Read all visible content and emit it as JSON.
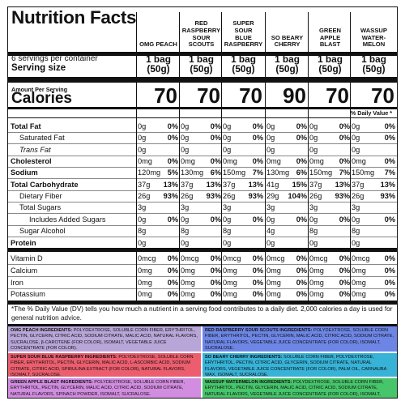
{
  "header": {
    "title": "Nutrition Facts",
    "products": [
      "OMG PEACH",
      "RED RASPBERRY SOUR SCOUTS",
      "SUPER SOUR BLUE RASPBERRY",
      "SO BEARY CHERRY",
      "GREEN APPLE BLAST",
      "WASSUP WATER-MELON"
    ],
    "product_display": [
      "OMG PEACH",
      "RED\nRASPBERRY\nSOUR\nSCOUTS",
      "SUPER\nSOUR\nBLUE\nRASPBERRY",
      "SO BEARY\nCHERRY",
      "GREEN\nAPPLE\nBLAST",
      "WASSUP\nWATER-\nMELON"
    ]
  },
  "servings": {
    "per_container": "6 servings per container",
    "size_label": "Serving size",
    "size": [
      "1 bag (50g)",
      "1 bag (50g)",
      "1 bag (50g)",
      "1 bag (50g)",
      "1 bag (50g)",
      "1 bag (50g)"
    ]
  },
  "calories": {
    "amount_per_serving": "Amount Per Serving",
    "label": "Calories",
    "values": [
      "70",
      "70",
      "70",
      "90",
      "70",
      "70"
    ]
  },
  "dv_header": "% Daily Value *",
  "nutrients": [
    {
      "name": "Total Fat",
      "bold": true,
      "values": [
        [
          "0g",
          "0%"
        ],
        [
          "0g",
          "0%"
        ],
        [
          "0g",
          "0%"
        ],
        [
          "0g",
          "0%"
        ],
        [
          "0g",
          "0%"
        ],
        [
          "0g",
          "0%"
        ]
      ]
    },
    {
      "name": "Saturated Fat",
      "indent": 1,
      "values": [
        [
          "0g",
          "0%"
        ],
        [
          "0g",
          "0%"
        ],
        [
          "0g",
          "0%"
        ],
        [
          "0g",
          "0%"
        ],
        [
          "0g",
          "0%"
        ],
        [
          "0g",
          "0%"
        ]
      ]
    },
    {
      "name": "Trans Fat",
      "indent": 1,
      "italic": true,
      "values": [
        [
          "0g",
          ""
        ],
        [
          "0g",
          ""
        ],
        [
          "0g",
          ""
        ],
        [
          "0g",
          ""
        ],
        [
          "0g",
          ""
        ],
        [
          "0g",
          ""
        ]
      ]
    },
    {
      "name": "Cholesterol",
      "bold": true,
      "values": [
        [
          "0mg",
          "0%"
        ],
        [
          "0mg",
          "0%"
        ],
        [
          "0mg",
          "0%"
        ],
        [
          "0mg",
          "0%"
        ],
        [
          "0mg",
          "0%"
        ],
        [
          "0mg",
          "0%"
        ]
      ]
    },
    {
      "name": "Sodium",
      "bold": true,
      "values": [
        [
          "120mg",
          "5%"
        ],
        [
          "130mg",
          "6%"
        ],
        [
          "150mg",
          "7%"
        ],
        [
          "130mg",
          "6%"
        ],
        [
          "150mg",
          "7%"
        ],
        [
          "150mg",
          "7%"
        ]
      ]
    },
    {
      "name": "Total Carbohydrate",
      "bold": true,
      "values": [
        [
          "37g",
          "13%"
        ],
        [
          "37g",
          "13%"
        ],
        [
          "37g",
          "13%"
        ],
        [
          "41g",
          "15%"
        ],
        [
          "37g",
          "13%"
        ],
        [
          "37g",
          "13%"
        ]
      ]
    },
    {
      "name": "Dietary Fiber",
      "indent": 1,
      "values": [
        [
          "26g",
          "93%"
        ],
        [
          "26g",
          "93%"
        ],
        [
          "26g",
          "93%"
        ],
        [
          "29g",
          "104%"
        ],
        [
          "26g",
          "93%"
        ],
        [
          "26g",
          "93%"
        ]
      ]
    },
    {
      "name": "Total Sugars",
      "indent": 1,
      "values": [
        [
          "3g",
          ""
        ],
        [
          "3g",
          ""
        ],
        [
          "3g",
          ""
        ],
        [
          "3g",
          ""
        ],
        [
          "3g",
          ""
        ],
        [
          "3g",
          ""
        ]
      ]
    },
    {
      "name": "Includes Added Sugars",
      "indent": 2,
      "values": [
        [
          "0g",
          "0%"
        ],
        [
          "0g",
          "0%"
        ],
        [
          "0g",
          "0%"
        ],
        [
          "0g",
          "0%"
        ],
        [
          "0g",
          "0%"
        ],
        [
          "0g",
          "0%"
        ]
      ]
    },
    {
      "name": "Sugar Alcohol",
      "indent": 1,
      "values": [
        [
          "8g",
          ""
        ],
        [
          "8g",
          ""
        ],
        [
          "8g",
          ""
        ],
        [
          "4g",
          ""
        ],
        [
          "8g",
          ""
        ],
        [
          "8g",
          ""
        ]
      ]
    },
    {
      "name": "Protein",
      "bold": true,
      "values": [
        [
          "0g",
          ""
        ],
        [
          "0g",
          ""
        ],
        [
          "0g",
          ""
        ],
        [
          "0g",
          ""
        ],
        [
          "0g",
          ""
        ],
        [
          "0g",
          ""
        ]
      ]
    },
    {
      "name": "Vitamin D",
      "values": [
        [
          "0mcg",
          "0%"
        ],
        [
          "0mcg",
          "0%"
        ],
        [
          "0mcg",
          "0%"
        ],
        [
          "0mcg",
          "0%"
        ],
        [
          "0mcg",
          "0%"
        ],
        [
          "0mcg",
          "0%"
        ]
      ]
    },
    {
      "name": "Calcium",
      "values": [
        [
          "0mg",
          "0%"
        ],
        [
          "0mg",
          "0%"
        ],
        [
          "0mg",
          "0%"
        ],
        [
          "0mg",
          "0%"
        ],
        [
          "0mg",
          "0%"
        ],
        [
          "0mg",
          "0%"
        ]
      ]
    },
    {
      "name": "Iron",
      "values": [
        [
          "0mg",
          "0%"
        ],
        [
          "0mg",
          "0%"
        ],
        [
          "0mg",
          "0%"
        ],
        [
          "0mg",
          "0%"
        ],
        [
          "0mg",
          "0%"
        ],
        [
          "0mg",
          "0%"
        ]
      ]
    },
    {
      "name": "Potassium",
      "values": [
        [
          "0mg",
          "0%"
        ],
        [
          "0mg",
          "0%"
        ],
        [
          "0mg",
          "0%"
        ],
        [
          "0mg",
          "0%"
        ],
        [
          "0mg",
          "0%"
        ],
        [
          "0mg",
          "0%"
        ]
      ]
    }
  ],
  "footnote": "*The % Daily Value (DV) tells you how much a nutrient in a serving food contributes to a daily diet. 2,000 calories a day is used for general nutrition advice.",
  "ingredients": [
    {
      "name": "OMG PEACH INGREDIENTS:",
      "text": "POLYDEXTROSE, SOLUBLE CORN FIBER, ERYTHRITOL, PECTIN, GLYCERIN, CITRIC ACID, SODIUM CITRATE, MALIC ACID, NATURAL FLAVORS, SUCRALOSE, β-CAROTENE (FOR COLOR), ISOMALT, VEGETABLE JUICE CONCENTRATE (FOR COLOR).",
      "color": "#b9a6d9"
    },
    {
      "name": "RED RASPBERRY SOUR SCOUTS INGREDIENTS:",
      "text": "POLYDEXTROSE, SOLUBLE CORN FIBER, ERYTHRITOL, PECTIN, GLYCERIN, MALIC ACID, CITRIC ACID, SODIUM CITRATE, NATURAL FLAVORS, VEGETABLE JUICE CONCENTRATE (FOR COLOR), ISOMALT, SUCRALOSE.",
      "color": "#6d86e6"
    },
    {
      "name": "SUPER SOUR BLUE RASPBERRY INGREDIENTS:",
      "text": "POLYDEXTROSE, SOLUBLE CORN FIBER, ERYTHRITOL, PECTIN, GLYCERIN, MALIC ACID, L-ASCORBIC ACID, SODIUM CITRATE, CITRIC ACID, SPIRULINA EXTRACT (FOR COLOR), NATURAL FLAVORS, ISOMALT, SUCRALOSE.",
      "color": "#ec5e6e"
    },
    {
      "name": "SO BEARY CHERRY INGREDIENTS:",
      "text": "SOLUBLE CORN FIBER, POLYDEXTROSE, ERYTHRITOL, PECTIN, CITRIC ACID, GLYCERIN, SODIUM CITRATE, NATURAL FLAVORS, VEGETABLE JUICE CONCENTRATE (FOR COLOR), PALM OIL, CARNAUBA WAX, ISOMALT, SUCRALOSE.",
      "color": "#37b3d8"
    },
    {
      "name": "GREEN APPLE BLAST INGREDIENTS:",
      "text": "POLYDEXTROSE, SOLUBLE CORN FIBER, ERYTHRITOL, PECTIN, GLYCERIN, MALIC ACID, CITRIC ACID, SODIUM CITRATE, NATURAL FLAVORS, SPINACH POWDER, ISOMALT, SUCRALOSE.",
      "color": "#d28de0"
    },
    {
      "name": "WASSUP WATERMELON INGREDIENTS:",
      "text": "POLYDEXTROSE, SOLUBLE CORN FIBER, ERYTHRITOL, PECTIN, GLYCERIN, MALIC ACID, CITRIC ACID, SODIUM CITRATE, NATURAL FLAVORS, VEGETABLE JUICE CONCENTRATE (FOR COLOR), ISOMALT, SUCRALOSE.",
      "color": "#47c56b"
    }
  ]
}
